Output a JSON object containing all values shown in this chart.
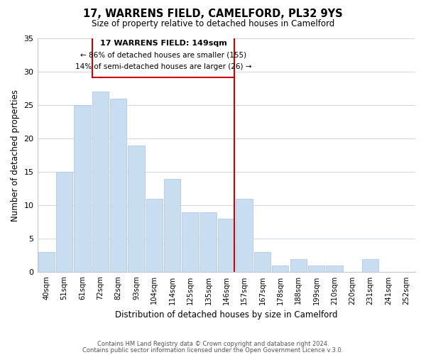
{
  "title": "17, WARRENS FIELD, CAMELFORD, PL32 9YS",
  "subtitle": "Size of property relative to detached houses in Camelford",
  "xlabel": "Distribution of detached houses by size in Camelford",
  "ylabel": "Number of detached properties",
  "bar_labels": [
    "40sqm",
    "51sqm",
    "61sqm",
    "72sqm",
    "82sqm",
    "93sqm",
    "104sqm",
    "114sqm",
    "125sqm",
    "135sqm",
    "146sqm",
    "157sqm",
    "167sqm",
    "178sqm",
    "188sqm",
    "199sqm",
    "210sqm",
    "220sqm",
    "231sqm",
    "241sqm",
    "252sqm"
  ],
  "bar_values": [
    3,
    15,
    25,
    27,
    26,
    19,
    11,
    14,
    9,
    9,
    8,
    11,
    3,
    1,
    2,
    1,
    1,
    0,
    2,
    0,
    0
  ],
  "bar_color": "#c9ddf0",
  "bar_edge_color": "#b0c8e8",
  "ylim": [
    0,
    35
  ],
  "yticks": [
    0,
    5,
    10,
    15,
    20,
    25,
    30,
    35
  ],
  "vline_color": "#cc0000",
  "annotation_title": "17 WARRENS FIELD: 149sqm",
  "annotation_line1": "← 86% of detached houses are smaller (155)",
  "annotation_line2": "14% of semi-detached houses are larger (26) →",
  "annotation_box_color": "#ffffff",
  "annotation_box_edge": "#cc0000",
  "footer_line1": "Contains HM Land Registry data © Crown copyright and database right 2024.",
  "footer_line2": "Contains public sector information licensed under the Open Government Licence v.3.0.",
  "background_color": "#ffffff",
  "grid_color": "#d0d8e8"
}
